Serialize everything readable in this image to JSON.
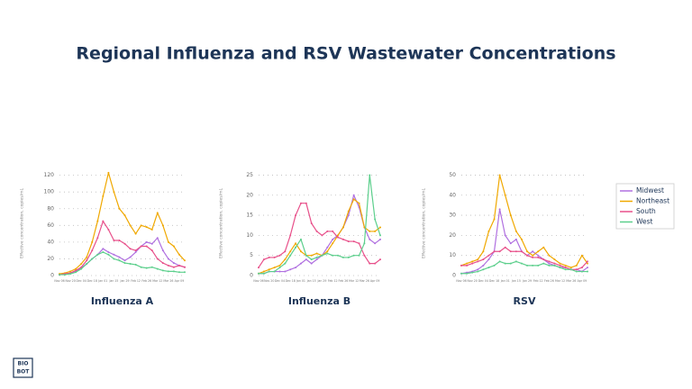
{
  "title": "Regional Influenza and RSV Wastewater Concentrations",
  "logo": {
    "line1": "BIO",
    "line2": "BOT"
  },
  "chart_data": [
    {
      "type": "line",
      "title": "Influenza A",
      "y_label": "Effective concentration, copies/mL",
      "categories": [
        "Nov 06",
        null,
        "Nov 20",
        null,
        "Dec 04",
        null,
        "Dec 18",
        null,
        "Jan 01",
        null,
        "Jan 15",
        null,
        "Jan 29",
        null,
        "Feb 12",
        null,
        "Feb 26",
        null,
        "Mar 12",
        null,
        "Mar 26",
        null,
        "Apr 09",
        null
      ],
      "ylim": [
        0,
        125
      ],
      "yticks": [
        0,
        20,
        40,
        60,
        80,
        100,
        120
      ],
      "grid": true,
      "series": [
        {
          "name": "Midwest",
          "color": "#b070e0",
          "values": [
            1,
            2,
            3,
            5,
            9,
            14,
            20,
            25,
            32,
            28,
            25,
            22,
            18,
            22,
            28,
            35,
            40,
            38,
            45,
            30,
            20,
            15,
            12,
            10
          ]
        },
        {
          "name": "Northeast",
          "color": "#f0a800",
          "values": [
            2,
            3,
            5,
            8,
            14,
            22,
            40,
            65,
            95,
            123,
            100,
            80,
            72,
            60,
            50,
            60,
            58,
            55,
            75,
            60,
            40,
            35,
            25,
            18
          ]
        },
        {
          "name": "South",
          "color": "#e8508a",
          "values": [
            1,
            2,
            3,
            6,
            10,
            18,
            30,
            45,
            65,
            55,
            42,
            42,
            38,
            32,
            30,
            35,
            35,
            30,
            20,
            15,
            12,
            10,
            12,
            10
          ]
        },
        {
          "name": "West",
          "color": "#5ccf8c",
          "values": [
            1,
            1,
            2,
            4,
            8,
            14,
            20,
            25,
            28,
            25,
            20,
            18,
            15,
            14,
            13,
            10,
            9,
            10,
            8,
            6,
            5,
            5,
            4,
            4
          ]
        }
      ]
    },
    {
      "type": "line",
      "title": "Influenza B",
      "y_label": "Effective concentration, copies/mL",
      "categories": [
        "Nov 06",
        null,
        "Nov 20",
        null,
        "Dec 04",
        null,
        "Dec 18",
        null,
        "Jan 01",
        null,
        "Jan 15",
        null,
        "Jan 29",
        null,
        "Feb 12",
        null,
        "Feb 26",
        null,
        "Mar 12",
        null,
        "Mar 26",
        null,
        "Apr 09",
        null
      ],
      "ylim": [
        0,
        26
      ],
      "yticks": [
        0,
        5,
        10,
        15,
        20,
        25
      ],
      "grid": true,
      "series": [
        {
          "name": "Midwest",
          "color": "#b070e0",
          "values": [
            0.5,
            0.5,
            1,
            1,
            1,
            1,
            1.5,
            2,
            3,
            4,
            3,
            4,
            5,
            7,
            9,
            10,
            12,
            15,
            20,
            17,
            12,
            9,
            8,
            9
          ]
        },
        {
          "name": "Northeast",
          "color": "#f0a800",
          "values": [
            0.5,
            1,
            1.5,
            2,
            2.5,
            4,
            6,
            8,
            6,
            5,
            5,
            5.5,
            5,
            6,
            8,
            10,
            12,
            16,
            19,
            18,
            12,
            11,
            11,
            12
          ]
        },
        {
          "name": "South",
          "color": "#e8508a",
          "values": [
            2,
            4,
            4.5,
            4.5,
            5,
            6,
            10,
            15,
            18,
            18,
            13,
            11,
            10,
            11,
            11,
            9.5,
            9,
            8.5,
            8.5,
            8,
            5,
            3,
            3,
            4
          ]
        },
        {
          "name": "West",
          "color": "#5ccf8c",
          "values": [
            0.5,
            0.5,
            1,
            1,
            2,
            3,
            5,
            7,
            9,
            5,
            4,
            4.5,
            5,
            5.5,
            5,
            5,
            4.5,
            4.5,
            5,
            5,
            8,
            25,
            14,
            10
          ]
        }
      ]
    },
    {
      "type": "line",
      "title": "RSV",
      "y_label": "Effective concentration, copies/mL",
      "categories": [
        "Nov 06",
        null,
        "Nov 20",
        null,
        "Dec 04",
        null,
        "Dec 18",
        null,
        "Jan 01",
        null,
        "Jan 15",
        null,
        "Jan 29",
        null,
        "Feb 12",
        null,
        "Feb 26",
        null,
        "Mar 12",
        null,
        "Mar 26",
        null,
        "Apr 09",
        null
      ],
      "ylim": [
        0,
        52
      ],
      "yticks": [
        0,
        10,
        20,
        30,
        40,
        50
      ],
      "grid": true,
      "series": [
        {
          "name": "Midwest",
          "color": "#b070e0",
          "values": [
            1,
            1.5,
            2,
            3,
            5,
            8,
            12,
            33,
            20,
            16,
            18,
            12,
            10,
            12,
            10,
            8,
            6,
            5,
            4,
            4,
            3,
            3,
            2,
            4
          ]
        },
        {
          "name": "Northeast",
          "color": "#f0a800",
          "values": [
            5,
            6,
            7,
            8,
            12,
            22,
            28,
            50,
            40,
            30,
            22,
            18,
            12,
            10,
            12,
            14,
            10,
            8,
            6,
            5,
            4,
            5,
            10,
            6
          ]
        },
        {
          "name": "South",
          "color": "#e8508a",
          "values": [
            5,
            5,
            6,
            7,
            8,
            10,
            12,
            12,
            14,
            12,
            12,
            12,
            10,
            9,
            9,
            8,
            7,
            6,
            5,
            4,
            3,
            3,
            4,
            7
          ]
        },
        {
          "name": "West",
          "color": "#5ccf8c",
          "values": [
            1,
            1,
            1.5,
            2,
            3,
            4,
            5,
            7,
            6,
            6,
            7,
            6,
            5,
            5,
            5,
            6,
            5,
            5,
            4,
            3,
            3,
            2,
            2,
            2
          ]
        }
      ]
    }
  ]
}
